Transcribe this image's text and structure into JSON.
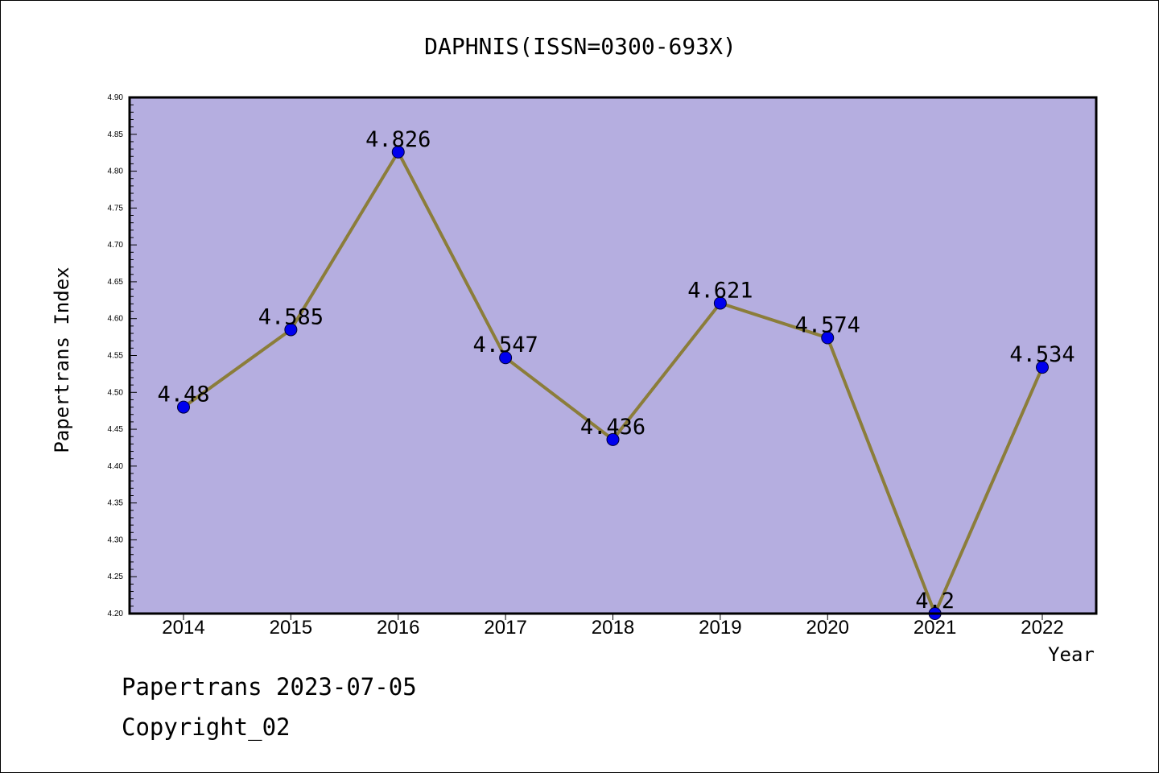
{
  "chart_data": {
    "type": "line",
    "title": "DAPHNIS(ISSN=0300-693X)",
    "xlabel": "Year",
    "ylabel": "Papertrans Index",
    "categories": [
      "2014",
      "2015",
      "2016",
      "2017",
      "2018",
      "2019",
      "2020",
      "2021",
      "2022"
    ],
    "values": [
      4.48,
      4.585,
      4.826,
      4.547,
      4.436,
      4.621,
      4.574,
      4.2,
      4.534
    ],
    "data_labels": [
      "4.48",
      "4.585",
      "4.826",
      "4.547",
      "4.436",
      "4.621",
      "4.574",
      "4.2",
      "4.534"
    ],
    "ylim": [
      4.2,
      4.9
    ],
    "yticks": [
      "4.20",
      "4.25",
      "4.30",
      "4.35",
      "4.40",
      "4.45",
      "4.50",
      "4.55",
      "4.60",
      "4.65",
      "4.70",
      "4.75",
      "4.80",
      "4.85",
      "4.90"
    ],
    "grid": false,
    "colors": {
      "plot_background": "#b5aee0",
      "line": "#8b7d3a",
      "marker": "#0000ee"
    }
  },
  "footer": {
    "line1": "Papertrans 2023-07-05",
    "line2": "Copyright_02"
  }
}
